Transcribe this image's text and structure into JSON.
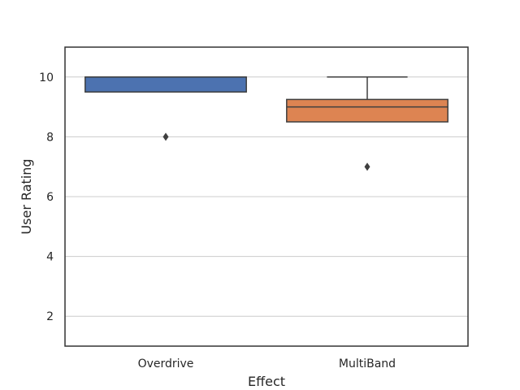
{
  "chart_data": {
    "type": "box",
    "title": "",
    "xlabel": "Effect",
    "ylabel": "User Rating",
    "ylim": [
      1,
      11
    ],
    "yticks": [
      2,
      4,
      6,
      8,
      10
    ],
    "grid": "horizontal",
    "categories": [
      "Overdrive",
      "MultiBand"
    ],
    "boxes": [
      {
        "name": "Overdrive",
        "color": "#4c72b0",
        "whisker_low": 9.5,
        "q1": 9.5,
        "median": 10,
        "q3": 10,
        "whisker_high": 10,
        "outliers": [
          8
        ]
      },
      {
        "name": "MultiBand",
        "color": "#dd8452",
        "whisker_low": 8.5,
        "q1": 8.5,
        "median": 9,
        "q3": 9.25,
        "whisker_high": 10,
        "outliers": [
          7
        ]
      }
    ]
  }
}
